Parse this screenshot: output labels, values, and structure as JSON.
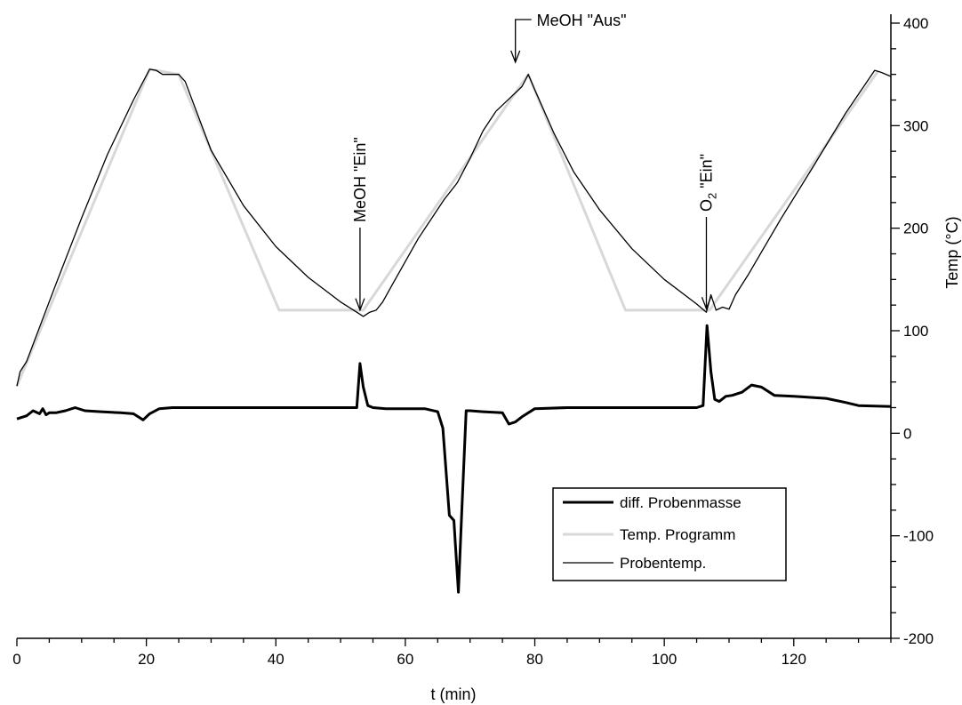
{
  "chart_data": {
    "type": "line",
    "xlabel": "t (min)",
    "y2label": "Temp (°C)",
    "xlim": [
      0,
      135
    ],
    "ylim_right": [
      -200,
      400
    ],
    "x_ticks": [
      0,
      20,
      40,
      60,
      80,
      100,
      120
    ],
    "y_right_ticks": [
      -200,
      -100,
      0,
      100,
      200,
      300,
      400
    ],
    "legend": {
      "position": "bottom-right",
      "entries": [
        "diff. Probenmasse",
        "Temp. Programm",
        "Probentemp."
      ]
    },
    "annotations": [
      {
        "text": "MeOH \"Ein\"",
        "x": 53,
        "y": 115,
        "orientation": "vertical"
      },
      {
        "text": "MeOH \"Aus\"",
        "x": 77,
        "y": 368,
        "orientation": "horizontal"
      },
      {
        "text": "O",
        "sub": "2",
        "rest": " \"Ein\"",
        "x": 106.5,
        "y": 118,
        "orientation": "vertical"
      }
    ],
    "series": [
      {
        "name": "diff. Probenmasse",
        "color": "#000000",
        "x": [
          0,
          1.5,
          2.5,
          3.5,
          4.0,
          4.5,
          5.0,
          6.0,
          7.5,
          9.0,
          10.5,
          13,
          16,
          18,
          19.5,
          20.5,
          22,
          24,
          30,
          40,
          50,
          52.5,
          53.0,
          53.5,
          54.2,
          55,
          57,
          60,
          63,
          65,
          65.8,
          66.8,
          67.5,
          68.2,
          68.7,
          69.4,
          70,
          72,
          75,
          76,
          77,
          78,
          80,
          85,
          90,
          95,
          100,
          105,
          106.0,
          106.6,
          107.2,
          107.8,
          108.5,
          109.5,
          110.5,
          112,
          113.5,
          115,
          117,
          120,
          125,
          128,
          130,
          135
        ],
        "values": [
          14,
          17,
          22,
          19,
          24,
          18,
          20,
          20,
          22,
          25,
          22,
          21,
          20,
          19,
          13,
          19,
          24,
          25,
          25,
          25,
          25,
          25,
          68,
          45,
          27,
          25,
          24,
          24,
          24,
          21,
          5,
          -80,
          -85,
          -155,
          -80,
          22,
          22,
          21,
          20,
          9,
          11,
          16,
          24,
          25,
          25,
          25,
          25,
          25,
          27,
          105,
          60,
          33,
          31,
          36,
          37,
          40,
          47,
          45,
          37,
          36,
          34,
          30,
          27,
          26
        ]
      },
      {
        "name": "Temp. Programm",
        "color": "#d8d8d8",
        "x": [
          0,
          20.5,
          25,
          40.5,
          53.5,
          79,
          94,
          107,
          133
        ],
        "values": [
          46,
          355,
          350,
          120,
          120,
          350,
          120,
          120,
          353
        ]
      },
      {
        "name": "Probentemp.",
        "color": "#000000",
        "x": [
          0,
          0.5,
          1.5,
          3,
          6,
          10,
          14,
          18,
          20.5,
          21.5,
          22.5,
          25,
          26,
          30,
          35,
          40,
          45,
          50,
          52.5,
          53.5,
          54.5,
          55.5,
          56.5,
          58,
          62,
          66,
          68,
          70,
          72,
          74,
          76,
          78,
          79,
          80,
          83,
          86,
          90,
          95,
          100,
          105,
          106.5,
          107.2,
          108,
          109,
          110,
          111,
          113,
          118,
          123,
          128,
          132.5,
          133.5,
          135
        ],
        "values": [
          46,
          60,
          70,
          95,
          145,
          210,
          272,
          325,
          355,
          354,
          350,
          350,
          343,
          276,
          222,
          182,
          152,
          128,
          118,
          114,
          118,
          120,
          128,
          145,
          190,
          228,
          244,
          268,
          295,
          314,
          326,
          338,
          350,
          335,
          292,
          255,
          218,
          180,
          150,
          126,
          118,
          135,
          120,
          123,
          121,
          135,
          155,
          209,
          260,
          312,
          354,
          352,
          348
        ]
      }
    ]
  }
}
